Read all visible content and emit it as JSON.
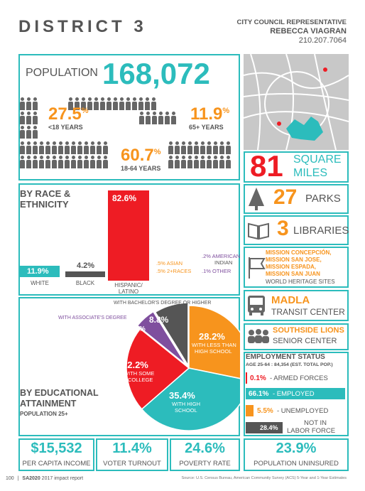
{
  "header": {
    "district": "DISTRICT 3",
    "rep_title": "CITY COUNCIL REPRESENTATIVE",
    "rep_name": "REBECCA VIAGRAN",
    "rep_phone": "210.207.7064"
  },
  "population": {
    "label": "POPULATION",
    "value": "168,072",
    "under18_pct": "27.5",
    "under18_label": "<18 YEARS",
    "over65_pct": "11.9",
    "over65_label": "65+ YEARS",
    "mid_pct": "60.7",
    "mid_label": "18-64 YEARS",
    "pct_sign": "%"
  },
  "area": {
    "value": "81",
    "unit1": "SQUARE",
    "unit2": "MILES"
  },
  "race": {
    "title1": "BY RACE &",
    "title2": "ETHNICITY",
    "white_pct": "11.9%",
    "white_label": "WHITE",
    "black_pct": "4.2%",
    "black_label": "BLACK",
    "hispanic_pct": "82.6%",
    "hispanic_label1": "HISPANIC/",
    "hispanic_label2": "LATINO",
    "asian": ".5% ASIAN",
    "tworaces": ".5% 2+RACES",
    "amerindian1": ".2% AMERICAN",
    "amerindian2": "INDIAN",
    "other": ".1% OTHER"
  },
  "chart_data": {
    "type": "pie",
    "title": "BY EDUCATIONAL ATTAINMENT",
    "subtitle": "POPULATION 25+",
    "slices": [
      {
        "label": "WITH LESS THAN HIGH SCHOOL",
        "value": 28.2,
        "color": "#f7941d"
      },
      {
        "label": "WITH HIGH SCHOOL",
        "value": 35.4,
        "color": "#2cbcbc"
      },
      {
        "label": "WITH SOME COLLEGE",
        "value": 22.2,
        "color": "#ee1c24"
      },
      {
        "label": "WITH ASSOCIATE'S DEGREE",
        "value": 5.4,
        "color": "#7f4f9e"
      },
      {
        "label": "WITH BACHELOR'S DEGREE OR HIGHER",
        "value": 8.8,
        "color": "#555555"
      }
    ]
  },
  "edu": {
    "title1": "BY EDUCATIONAL",
    "title2": "ATTAINMENT",
    "subtitle": "POPULATION 25+",
    "lths_pct": "28.2%",
    "lths_l1": "WITH LESS THAN",
    "lths_l2": "HIGH SCHOOL",
    "hs_pct": "35.4%",
    "hs_l1": "WITH HIGH",
    "hs_l2": "SCHOOL",
    "sc_pct": "22.2%",
    "sc_l1": "WITH SOME",
    "sc_l2": "COLLEGE",
    "assoc_pct": "5.4%",
    "assoc_label": "WITH ASSOCIATE'S DEGREE",
    "bach_pct": "8.8%",
    "bach_label": "WITH BACHELOR'S DEGREE OR HIGHER"
  },
  "amenities": {
    "parks_num": "27",
    "parks_label": "PARKS",
    "libraries_num": "3",
    "libraries_label": "LIBRARIES",
    "missions": [
      "MISSION CONCEPCIÓN,",
      "MISSION SAN JOSE,",
      "MISSION ESPADA,",
      "MISSION SAN JUAN"
    ],
    "heritage_label": "WORLD HERITAGE SITES",
    "transit_name": "MADLA",
    "transit_label": "TRANSIT CENTER",
    "senior_name": "SOUTHSIDE LIONS",
    "senior_label": "SENIOR CENTER"
  },
  "employment": {
    "title": "EMPLOYMENT STATUS",
    "subtitle": "AGE 25-64 : 84,354 (EST. TOTAL POP.)",
    "armed_pct": "0.1%",
    "armed_label": "- ARMED FORCES",
    "employed_pct": "66.1%",
    "employed_label": "- EMPLOYED",
    "unemployed_pct": "5.5%",
    "unemployed_label": "- UNEMPLOYED",
    "nilf_pct": "28.4%",
    "nilf_l1": "NOT IN",
    "nilf_l2": "LABOR FORCE"
  },
  "bottom": {
    "income": "$15,532",
    "income_label": "PER CAPITA INCOME",
    "turnout": "11.4%",
    "turnout_label": "VOTER TURNOUT",
    "poverty": "24.6%",
    "poverty_label": "POVERTY RATE",
    "uninsured": "23.9%",
    "uninsured_label": "POPULATION UNINSURED"
  },
  "footer": {
    "page": "100",
    "report": "SA2020",
    "report_rest": "2017 impact report",
    "source": "Source: U.S. Census Bureau, American Community Survey (ACS) 5-Year and 1-Year Estimates"
  }
}
